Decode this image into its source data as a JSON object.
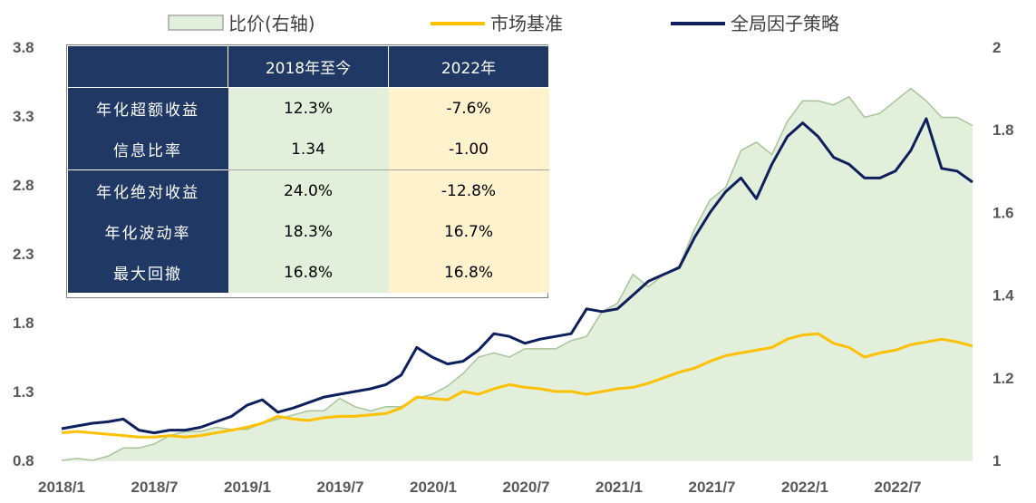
{
  "chart_data": {
    "type": "line",
    "legend": [
      "比价(右轴)",
      "市场基准",
      "全局因子策略"
    ],
    "legend_placement": "top",
    "x_tick_labels": [
      "2018/1",
      "2018/7",
      "2019/1",
      "2019/7",
      "2020/1",
      "2020/7",
      "2021/1",
      "2021/7",
      "2022/1",
      "2022/7"
    ],
    "y_left": {
      "ticks": [
        "0.8",
        "1.3",
        "1.8",
        "2.3",
        "2.8",
        "3.3",
        "3.8"
      ],
      "range": [
        0.8,
        3.8
      ]
    },
    "y_right": {
      "ticks": [
        "1",
        "1.2",
        "1.4",
        "1.6",
        "1.8",
        "2"
      ],
      "range": [
        1,
        2
      ]
    },
    "series": [
      {
        "name": "比价(右轴)",
        "kind": "area",
        "axis": "right",
        "color": "#a9c49a",
        "fill": "#e2efda",
        "values": [
          1.0,
          1.005,
          1.0,
          1.01,
          1.03,
          1.03,
          1.04,
          1.06,
          1.07,
          1.07,
          1.08,
          1.075,
          1.075,
          1.09,
          1.1,
          1.11,
          1.12,
          1.12,
          1.15,
          1.13,
          1.12,
          1.13,
          1.13,
          1.15,
          1.16,
          1.18,
          1.21,
          1.25,
          1.26,
          1.25,
          1.27,
          1.27,
          1.27,
          1.29,
          1.3,
          1.36,
          1.38,
          1.45,
          1.42,
          1.45,
          1.47,
          1.56,
          1.63,
          1.66,
          1.75,
          1.77,
          1.74,
          1.82,
          1.87,
          1.87,
          1.86,
          1.88,
          1.83,
          1.84,
          1.87,
          1.9,
          1.87,
          1.83,
          1.83,
          1.81
        ]
      },
      {
        "name": "市场基准",
        "kind": "line",
        "axis": "left",
        "color": "#ffc000",
        "values": [
          1.0,
          1.01,
          1.0,
          0.99,
          0.98,
          0.97,
          0.97,
          0.98,
          0.97,
          0.98,
          1.0,
          1.02,
          1.04,
          1.07,
          1.12,
          1.1,
          1.09,
          1.11,
          1.12,
          1.12,
          1.13,
          1.14,
          1.18,
          1.26,
          1.25,
          1.24,
          1.3,
          1.28,
          1.32,
          1.35,
          1.33,
          1.32,
          1.3,
          1.3,
          1.28,
          1.3,
          1.32,
          1.33,
          1.36,
          1.4,
          1.44,
          1.47,
          1.52,
          1.56,
          1.58,
          1.6,
          1.62,
          1.68,
          1.71,
          1.72,
          1.65,
          1.62,
          1.55,
          1.58,
          1.6,
          1.64,
          1.66,
          1.68,
          1.66,
          1.63
        ]
      },
      {
        "name": "全局因子策略",
        "kind": "line",
        "axis": "left",
        "color": "#0d1f5c",
        "values": [
          1.03,
          1.05,
          1.07,
          1.08,
          1.1,
          1.02,
          1.0,
          1.02,
          1.02,
          1.04,
          1.08,
          1.12,
          1.2,
          1.24,
          1.15,
          1.18,
          1.22,
          1.26,
          1.28,
          1.3,
          1.32,
          1.35,
          1.42,
          1.62,
          1.55,
          1.5,
          1.52,
          1.6,
          1.72,
          1.7,
          1.65,
          1.68,
          1.7,
          1.72,
          1.9,
          1.88,
          1.9,
          2.0,
          2.1,
          2.15,
          2.2,
          2.42,
          2.6,
          2.75,
          2.85,
          2.7,
          2.95,
          3.15,
          3.25,
          3.15,
          3.0,
          2.95,
          2.85,
          2.85,
          2.9,
          3.05,
          3.28,
          2.92,
          2.9,
          2.82
        ]
      }
    ]
  },
  "table": {
    "header": [
      "",
      "2018年至今",
      "2022年"
    ],
    "rows": [
      {
        "label": "年化超额收益",
        "v1": "12.3%",
        "v2": "-7.6%"
      },
      {
        "label": "信息比率",
        "v1": "1.34",
        "v2": "-1.00"
      },
      {
        "label": "年化绝对收益",
        "v1": "24.0%",
        "v2": "-12.8%"
      },
      {
        "label": "年化波动率",
        "v1": "18.3%",
        "v2": "16.7%"
      },
      {
        "label": "最大回撤",
        "v1": "16.8%",
        "v2": "16.8%"
      }
    ]
  }
}
